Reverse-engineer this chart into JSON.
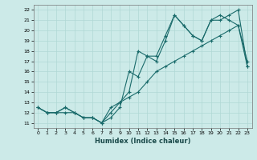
{
  "xlabel": "Humidex (Indice chaleur)",
  "bg_color": "#cceae8",
  "grid_color": "#b0d8d5",
  "line_color": "#1a6b6b",
  "xlim": [
    -0.5,
    23.5
  ],
  "ylim": [
    10.5,
    22.5
  ],
  "xticks": [
    0,
    1,
    2,
    3,
    4,
    5,
    6,
    7,
    8,
    9,
    10,
    11,
    12,
    13,
    14,
    15,
    16,
    17,
    18,
    19,
    20,
    21,
    22,
    23
  ],
  "yticks": [
    11,
    12,
    13,
    14,
    15,
    16,
    17,
    18,
    19,
    20,
    21,
    22
  ],
  "line1_x": [
    0,
    1,
    2,
    3,
    4,
    5,
    6,
    7,
    8,
    9,
    10,
    11,
    12,
    13,
    14,
    15,
    16,
    17,
    18,
    19,
    20,
    21,
    22,
    23
  ],
  "line1_y": [
    12.5,
    12.0,
    12.0,
    12.0,
    12.0,
    11.5,
    11.5,
    11.0,
    11.5,
    12.5,
    16.0,
    15.5,
    17.5,
    17.5,
    19.5,
    21.5,
    20.5,
    19.5,
    19.0,
    21.0,
    21.0,
    21.5,
    22.0,
    16.5
  ],
  "line2_x": [
    0,
    1,
    2,
    3,
    4,
    5,
    6,
    7,
    8,
    9,
    10,
    11,
    12,
    13,
    14,
    15,
    16,
    17,
    18,
    19,
    20,
    21,
    22,
    23
  ],
  "line2_y": [
    12.5,
    12.0,
    12.0,
    12.5,
    12.0,
    11.5,
    11.5,
    11.0,
    12.0,
    13.0,
    14.0,
    18.0,
    17.5,
    17.0,
    19.0,
    21.5,
    20.5,
    19.5,
    19.0,
    21.0,
    21.5,
    21.0,
    20.5,
    17.0
  ],
  "line3_x": [
    0,
    1,
    2,
    3,
    4,
    5,
    6,
    7,
    8,
    9,
    10,
    11,
    12,
    13,
    14,
    15,
    16,
    17,
    18,
    19,
    20,
    21,
    22,
    23
  ],
  "line3_y": [
    12.5,
    12.0,
    12.0,
    12.5,
    12.0,
    11.5,
    11.5,
    11.0,
    12.5,
    13.0,
    13.5,
    14.0,
    15.0,
    16.0,
    16.5,
    17.0,
    17.5,
    18.0,
    18.5,
    19.0,
    19.5,
    20.0,
    20.5,
    16.5
  ]
}
